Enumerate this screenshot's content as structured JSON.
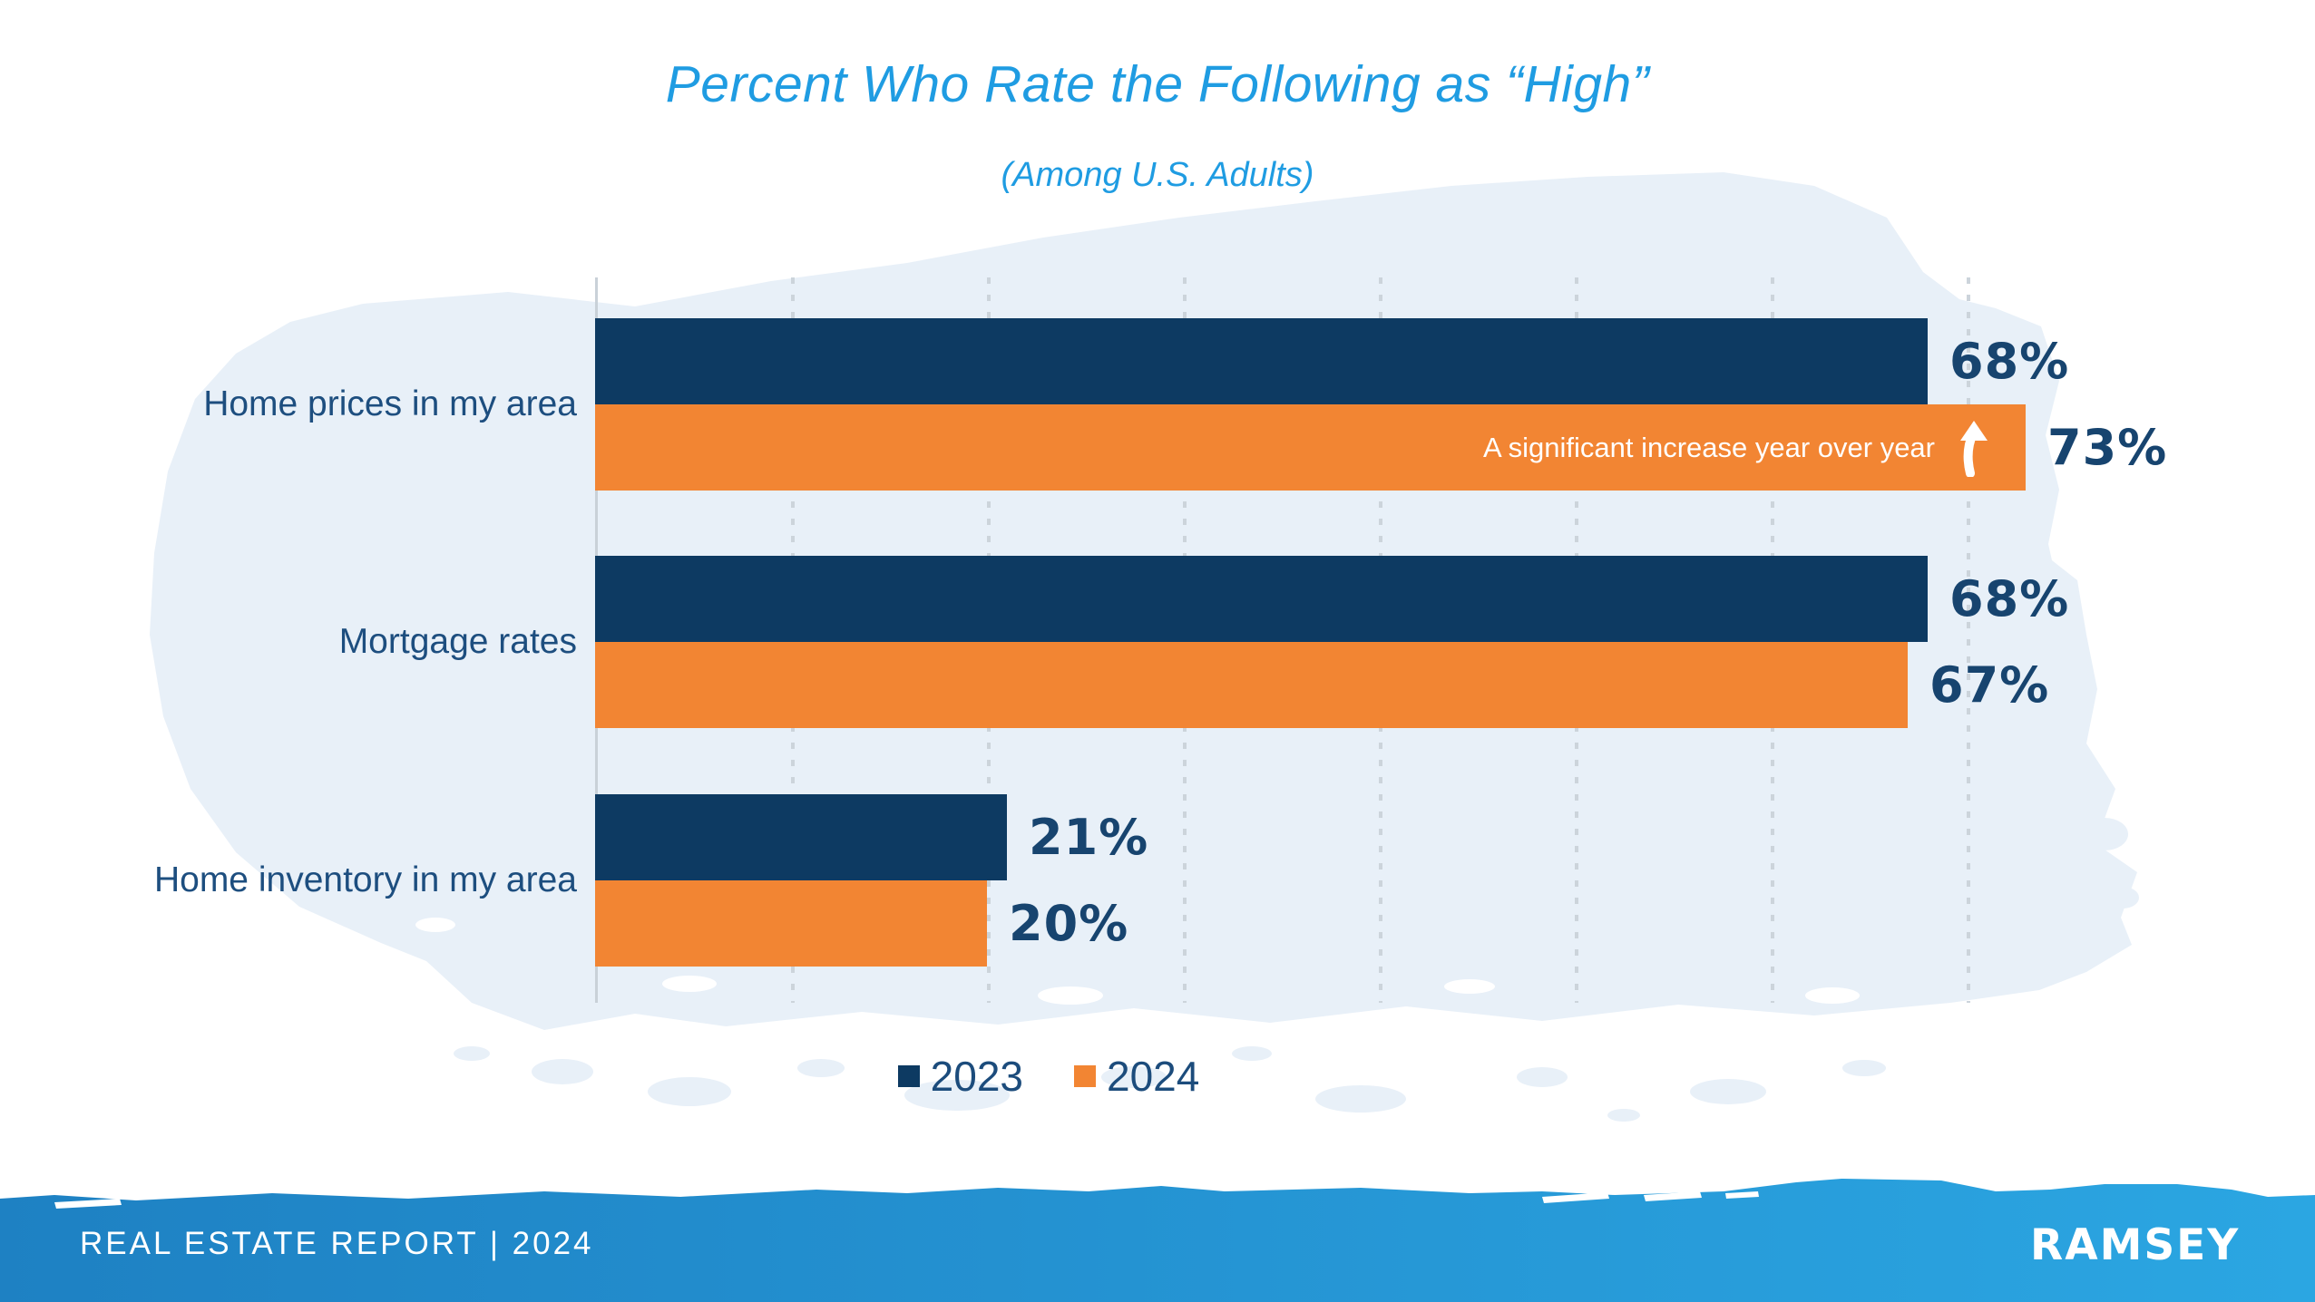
{
  "header": {
    "title": "Percent Who Rate the Following as “High”",
    "subtitle": "(Among U.S. Adults)"
  },
  "chart_data": {
    "type": "bar",
    "orientation": "horizontal",
    "title": "Percent Who Rate the Following as “High”",
    "subtitle": "(Among U.S. Adults)",
    "categories": [
      "Home prices in my area",
      "Mortgage rates",
      "Home inventory in my area"
    ],
    "series": [
      {
        "name": "2023",
        "color": "#0d3a62",
        "values": [
          68,
          68,
          21
        ]
      },
      {
        "name": "2024",
        "color": "#f28533",
        "values": [
          73,
          67,
          20
        ]
      }
    ],
    "value_suffix": "%",
    "xlim": [
      0,
      100
    ],
    "grid_pct": [
      10,
      20,
      30,
      40,
      50,
      60,
      70
    ],
    "grid_style": "dotted-vertical",
    "legend_position": "bottom",
    "annotation": {
      "text": "A significant increase year over year",
      "icon": "up-arrow",
      "target_series": "2024",
      "target_category": "Home prices in my area"
    }
  },
  "legend": [
    {
      "label": "2023",
      "color": "#0d3a62"
    },
    {
      "label": "2024",
      "color": "#f28533"
    }
  ],
  "footer": {
    "report_label": "REAL ESTATE REPORT | 2024",
    "brand": "RAMSEY"
  },
  "colors": {
    "title_blue": "#1f9ce2",
    "bar_navy": "#0d3a62",
    "bar_orange": "#f28533",
    "label_navy": "#1d4e7f",
    "value_navy": "#17446f",
    "wash_blue": "#e8f0f8",
    "footer_blue_left": "#1e81c3",
    "footer_blue_right": "#2ba6e2"
  }
}
